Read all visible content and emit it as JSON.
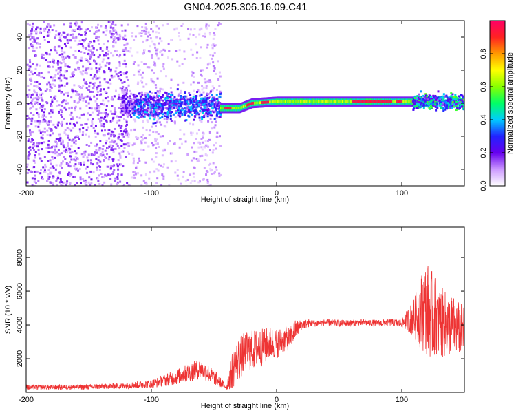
{
  "title": "GN04.2025.306.16.09.C41",
  "chart_data": [
    {
      "type": "heatmap",
      "name": "spectrogram",
      "xlabel": "Height of straight line (km)",
      "ylabel": "Frequency (Hz)",
      "xlim": [
        -200,
        150
      ],
      "ylim": [
        -50,
        50
      ],
      "xticks": [
        -200,
        -100,
        0,
        100
      ],
      "xtick_labels": [
        "-200",
        "-100",
        "0",
        "100"
      ],
      "yticks": [
        -40,
        -20,
        0,
        20,
        40
      ],
      "ytick_labels": [
        "-40",
        "-20",
        "0",
        "20",
        "40"
      ],
      "colorbar": {
        "label": "Normalized spectral amplitude",
        "range": [
          0,
          1
        ],
        "ticks": [
          0.0,
          0.2,
          0.4,
          0.6,
          0.8
        ],
        "tick_labels": [
          "0.0",
          "0.2",
          "0.4",
          "0.6",
          "0.8"
        ],
        "colormap": [
          "#ffffff",
          "#cc99ff",
          "#6600ee",
          "#2222ff",
          "#00ccff",
          "#00ff66",
          "#88ff00",
          "#ffff00",
          "#ff9900",
          "#ff2222",
          "#ff0066"
        ]
      },
      "features": [
        {
          "label": "broadband noise",
          "x_range": [
            -200,
            -45
          ],
          "freq_range": [
            -50,
            50
          ],
          "amplitude": 0.1
        },
        {
          "label": "cluster",
          "x_range": [
            -125,
            -45
          ],
          "freq_range": [
            -12,
            10
          ],
          "amplitude": 0.35
        },
        {
          "label": "narrow line",
          "x_range": [
            -45,
            110
          ],
          "freq_center": [
            [
              -45,
              -3
            ],
            [
              -30,
              -3
            ],
            [
              -20,
              0
            ],
            [
              0,
              1
            ],
            [
              40,
              1
            ],
            [
              80,
              1
            ],
            [
              110,
              1
            ]
          ],
          "amplitude": 0.7
        },
        {
          "label": "tail cluster",
          "x_range": [
            108,
            150
          ],
          "freq_range": [
            -5,
            8
          ],
          "amplitude": 0.45
        }
      ]
    },
    {
      "type": "line",
      "name": "snr",
      "xlabel": "Height of straight line (km)",
      "ylabel": "SNR (10 * v/v)",
      "xlim": [
        -200,
        150
      ],
      "ylim": [
        0,
        9800
      ],
      "xticks": [
        -200,
        -100,
        0,
        100
      ],
      "xtick_labels": [
        "-200",
        "-100",
        "0",
        "100"
      ],
      "yticks": [
        2000,
        4000,
        6000,
        8000
      ],
      "ytick_labels": [
        "2000",
        "4000",
        "6000",
        "8000"
      ],
      "color": "#ee3333",
      "series": [
        {
          "name": "SNR",
          "x": [
            -200,
            -150,
            -120,
            -100,
            -90,
            -80,
            -70,
            -60,
            -50,
            -40,
            -35,
            -30,
            -25,
            -20,
            -15,
            -10,
            -5,
            0,
            5,
            10,
            15,
            20,
            25,
            30,
            40,
            50,
            60,
            70,
            80,
            90,
            100,
            105,
            110,
            115,
            120,
            125,
            130,
            135,
            140,
            145,
            150
          ],
          "values": [
            300,
            320,
            400,
            500,
            700,
            900,
            1200,
            1400,
            900,
            300,
            1400,
            2000,
            2400,
            2500,
            2600,
            2700,
            2900,
            2900,
            3100,
            3200,
            3700,
            4000,
            4100,
            4100,
            4150,
            4100,
            4100,
            4150,
            4100,
            4150,
            4100,
            4300,
            4400,
            4800,
            5000,
            4500,
            4200,
            4000,
            4000,
            3800,
            3700
          ],
          "spread": [
            150,
            150,
            180,
            250,
            350,
            450,
            550,
            600,
            450,
            150,
            1200,
            1300,
            1200,
            1200,
            1200,
            1100,
            1000,
            900,
            800,
            700,
            600,
            300,
            250,
            200,
            200,
            200,
            200,
            200,
            200,
            200,
            250,
            700,
            1200,
            2200,
            2800,
            2600,
            2200,
            2000,
            1800,
            1600,
            1500
          ]
        }
      ]
    }
  ]
}
